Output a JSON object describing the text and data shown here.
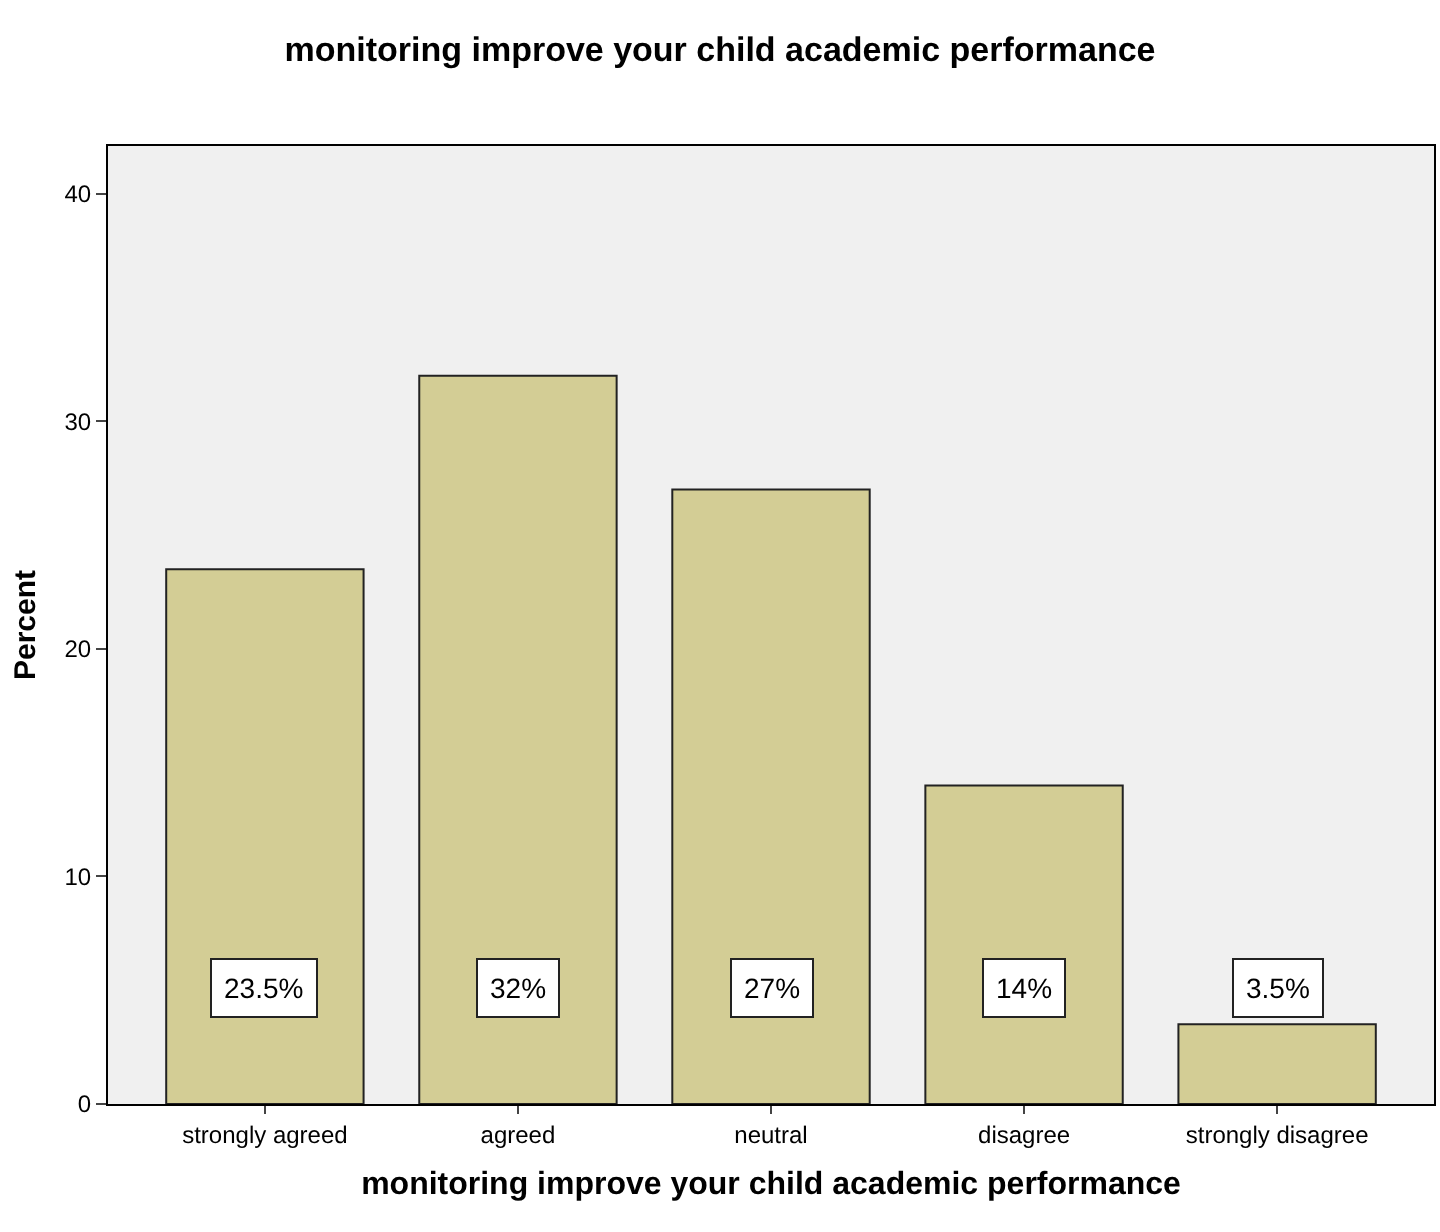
{
  "chart_data": {
    "type": "bar",
    "title": "monitoring improve your child academic performance",
    "xlabel": "monitoring improve your child academic performance",
    "ylabel": "Percent",
    "categories": [
      "strongly agreed",
      "agreed",
      "neutral",
      "disagree",
      "strongly disagree"
    ],
    "values": [
      23.5,
      32,
      27,
      14,
      3.5
    ],
    "value_labels": [
      "23.5%",
      "32%",
      "27%",
      "14%",
      "3.5%"
    ],
    "color": "#d3cd95",
    "ylim": [
      0,
      42.1
    ],
    "yticks": [
      0,
      10,
      20,
      30,
      40
    ],
    "grid": false
  }
}
